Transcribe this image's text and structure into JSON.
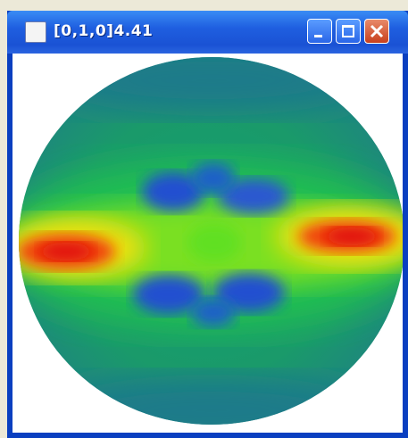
{
  "window": {
    "title": "[0,1,0]4.41"
  }
}
